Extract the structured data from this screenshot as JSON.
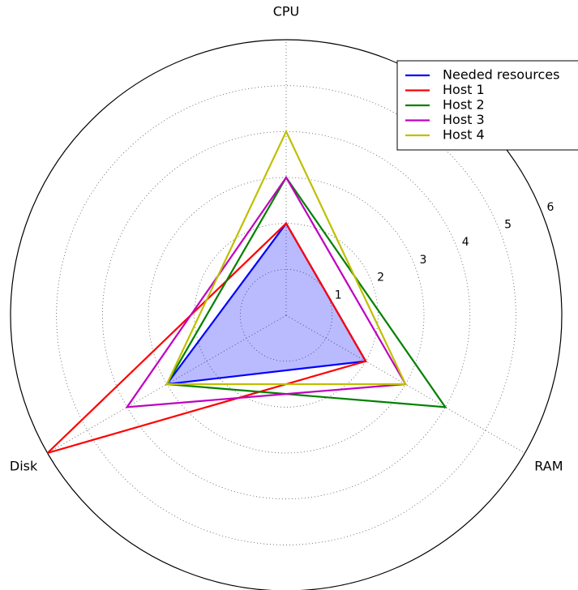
{
  "chart_data": {
    "type": "radar",
    "categories": [
      "CPU",
      "RAM",
      "Disk"
    ],
    "rlim": [
      0,
      6
    ],
    "rticks": [
      1,
      2,
      3,
      4,
      5,
      6
    ],
    "grid": true,
    "legend": "upper right",
    "series": [
      {
        "name": "Needed resources",
        "color": "#0000ff",
        "fill": true,
        "values": [
          2,
          2,
          3
        ]
      },
      {
        "name": "Host 1",
        "color": "#ff0000",
        "values": [
          2,
          2,
          6
        ]
      },
      {
        "name": "Host 2",
        "color": "#008000",
        "values": [
          3,
          4,
          3
        ]
      },
      {
        "name": "Host 3",
        "color": "#bf00bf",
        "values": [
          3,
          3,
          4
        ]
      },
      {
        "name": "Host 4",
        "color": "#bfbf00",
        "values": [
          4,
          3,
          3
        ]
      }
    ]
  }
}
